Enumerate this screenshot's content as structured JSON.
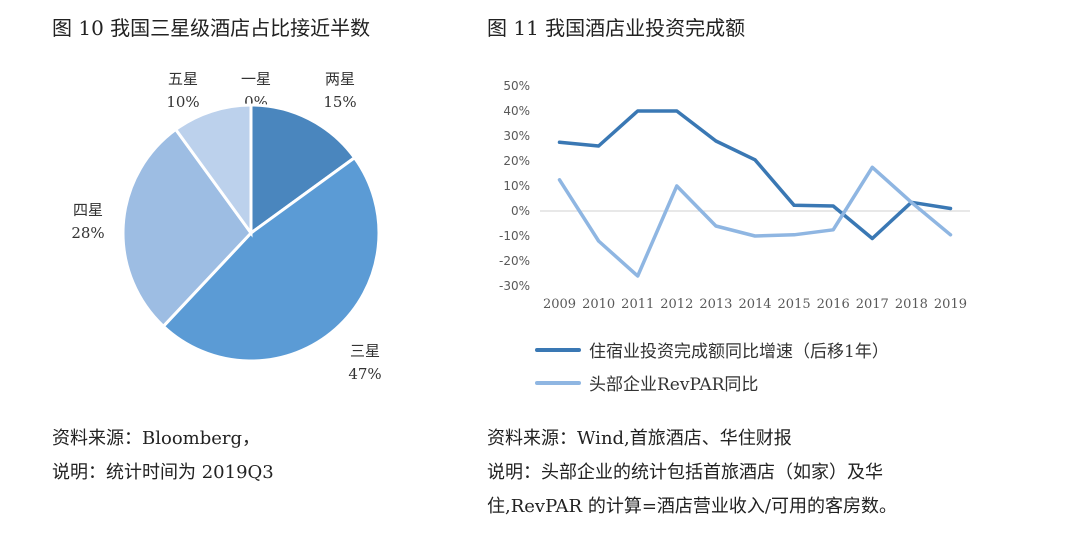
{
  "left_title": "图 10 我国三星级酒店占比接近半数",
  "right_title": "图 11 我国酒店业投资完成额",
  "left_notes": {
    "line1": "资料来源：Bloomberg，",
    "line2": "说明：统计时间为 2019Q3"
  },
  "right_notes": {
    "line1": "资料来源：Wind,首旅酒店、华住财报",
    "line2": "说明：头部企业的统计包括首旅酒店（如家）及华",
    "line3": "住,RevPAR 的计算=酒店营业收入/可用的客房数。"
  },
  "legend": {
    "series1": "住宿业投资完成额同比增速（后移1年）",
    "series2": "头部企业RevPAR同比"
  },
  "colors": {
    "series1": "#3a78b4",
    "series2": "#8fb6e2"
  },
  "chart_data": [
    {
      "type": "pie",
      "slices": [
        {
          "label": "一星",
          "pct_label": "0%",
          "value": 0,
          "color": "#4a86be"
        },
        {
          "label": "两星",
          "pct_label": "15%",
          "value": 15,
          "color": "#4a86be"
        },
        {
          "label": "三星",
          "pct_label": "47%",
          "value": 47,
          "color": "#5b9bd5"
        },
        {
          "label": "四星",
          "pct_label": "28%",
          "value": 28,
          "color": "#9dbde3"
        },
        {
          "label": "五星",
          "pct_label": "10%",
          "value": 10,
          "color": "#bcd1ec"
        }
      ]
    },
    {
      "type": "line",
      "x": [
        "2009",
        "2010",
        "2011",
        "2012",
        "2013",
        "2014",
        "2015",
        "2016",
        "2017",
        "2018",
        "2019"
      ],
      "ylim": [
        -30,
        50
      ],
      "yticks": [
        "50%",
        "40%",
        "30%",
        "20%",
        "10%",
        "0%",
        "-10%",
        "-20%",
        "-30%"
      ],
      "series": [
        {
          "name": "住宿业投资完成额同比增速（后移1年）",
          "values": [
            27.5,
            26,
            40,
            40,
            28,
            20.5,
            2.3,
            2,
            -11,
            3.5,
            1
          ]
        },
        {
          "name": "头部企业RevPAR同比",
          "values": [
            12.5,
            -12,
            -26,
            10,
            -6,
            -10,
            -9.5,
            -7.5,
            17.5,
            3.5,
            -9.5
          ]
        }
      ]
    }
  ]
}
